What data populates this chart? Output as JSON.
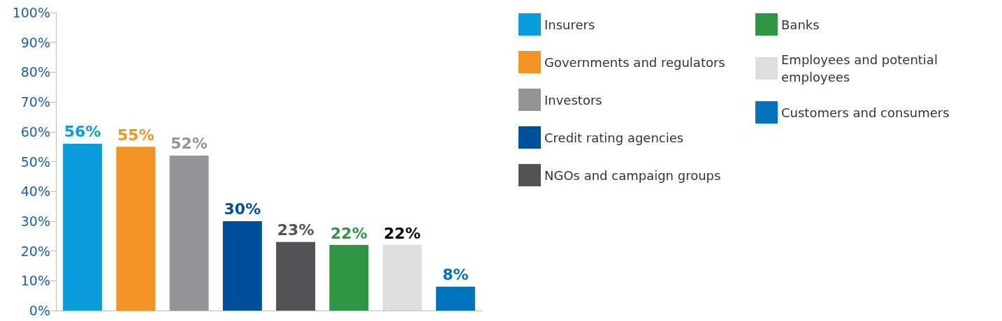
{
  "chart_data": {
    "type": "bar",
    "categories": [
      null,
      null,
      null,
      null,
      null,
      null,
      null,
      null
    ],
    "series": [
      {
        "name": "Insurers",
        "color": "#0a9ddb",
        "values": [
          56,
          null,
          null,
          null,
          null,
          null,
          null,
          null
        ],
        "value_labels": [
          "56%",
          null,
          null,
          null,
          null,
          null,
          null,
          null
        ]
      },
      {
        "name": "Governments and regulators",
        "color": "#f39325",
        "values": [
          null,
          55,
          null,
          null,
          null,
          null,
          null,
          null
        ],
        "value_labels": [
          null,
          "55%",
          null,
          null,
          null,
          null,
          null,
          null
        ]
      },
      {
        "name": "Investors",
        "color": "#939598",
        "values": [
          null,
          null,
          52,
          null,
          null,
          null,
          null,
          null
        ],
        "value_labels": [
          null,
          null,
          "52%",
          null,
          null,
          null,
          null,
          null
        ]
      },
      {
        "name": "Credit rating agencies",
        "color": "#004f9a",
        "values": [
          null,
          null,
          null,
          30,
          null,
          null,
          null,
          null
        ],
        "value_labels": [
          null,
          null,
          null,
          "30%",
          null,
          null,
          null,
          null
        ]
      },
      {
        "name": "NGOs and campaign groups",
        "color": "#515358",
        "values": [
          null,
          null,
          null,
          null,
          23,
          null,
          null,
          null
        ],
        "value_labels": [
          null,
          null,
          null,
          null,
          "23%",
          null,
          null,
          null
        ]
      },
      {
        "name": "Banks",
        "color": "#2f9444",
        "values": [
          null,
          null,
          null,
          null,
          null,
          22,
          null,
          null
        ],
        "value_labels": [
          null,
          null,
          null,
          null,
          null,
          "22%",
          null,
          null
        ]
      },
      {
        "name": "Employees and potential employees",
        "color": "#dcdee0",
        "values": [
          null,
          null,
          null,
          null,
          null,
          null,
          22,
          null
        ],
        "value_labels": [
          null,
          null,
          null,
          null,
          null,
          null,
          "22%",
          null
        ]
      },
      {
        "name": "Customers and consumers",
        "color": "#0073bd",
        "values": [
          null,
          null,
          null,
          null,
          null,
          null,
          null,
          8
        ],
        "value_labels": [
          null,
          null,
          null,
          null,
          null,
          null,
          null,
          "8%"
        ]
      }
    ],
    "ylim": [
      0,
      100
    ],
    "yticks": [
      {
        "value": 0,
        "label": "0%"
      },
      {
        "value": 10,
        "label": "10%"
      },
      {
        "value": 20,
        "label": "20%"
      },
      {
        "value": 30,
        "label": "30%"
      },
      {
        "value": 40,
        "label": "40%"
      },
      {
        "value": 50,
        "label": "50%"
      },
      {
        "value": 60,
        "label": "60%"
      },
      {
        "value": 70,
        "label": "70%"
      },
      {
        "value": 80,
        "label": "80%"
      },
      {
        "value": 90,
        "label": "90%"
      },
      {
        "value": 100,
        "label": "100%"
      }
    ],
    "tick_labels": "y",
    "grid": false,
    "legend": "right"
  }
}
